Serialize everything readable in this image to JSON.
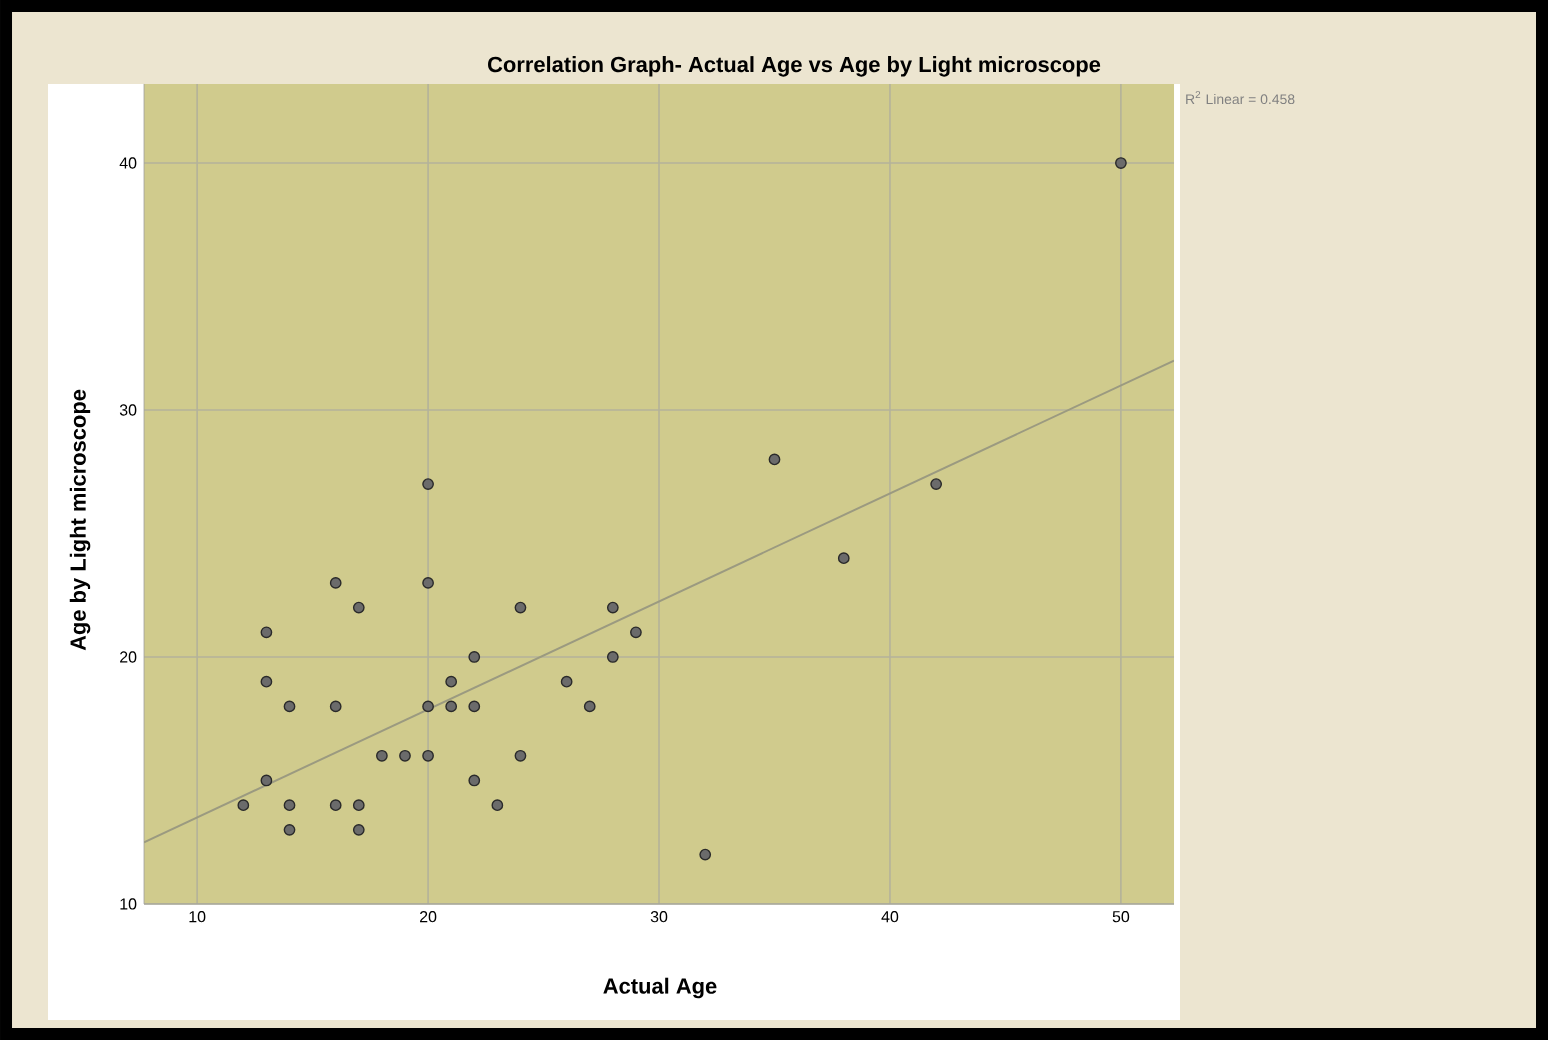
{
  "chart_data": {
    "type": "scatter",
    "title": "Correlation Graph- Actual Age vs Age by  Light microscope",
    "xlabel": "Actual Age",
    "ylabel": "Age by Light  microscope",
    "annotations": [
      "R$^{2}$ Linear = 0.458"
    ],
    "xlim": [
      7.7,
      52.3
    ],
    "ylim": [
      10,
      43.2
    ],
    "xticks": [
      10,
      20,
      30,
      40,
      50
    ],
    "yticks": [
      10,
      20,
      30,
      40
    ],
    "grid": true,
    "series": [
      {
        "color": "#6b6b6b",
        "marker": "circle",
        "x": [
          12,
          13,
          13,
          13,
          14,
          14,
          14,
          16,
          16,
          16,
          17,
          17,
          17,
          18,
          19,
          20,
          20,
          20,
          20,
          21,
          21,
          22,
          22,
          22,
          23,
          24,
          24,
          26,
          27,
          28,
          28,
          29,
          32,
          35,
          38,
          42,
          50
        ],
        "values": [
          14,
          21,
          19,
          15,
          18,
          14,
          13,
          23,
          18,
          14,
          22,
          14,
          13,
          16,
          16,
          27,
          23,
          18,
          16,
          19,
          18,
          20,
          18,
          15,
          14,
          22,
          16,
          19,
          18,
          22,
          20,
          21,
          12,
          28,
          24,
          27,
          40
        ]
      },
      {
        "type": "line",
        "color": "#9b9a80",
        "marker": "none",
        "x": [
          7.7,
          52.3
        ],
        "values": [
          12.5,
          32.0
        ]
      }
    ]
  }
}
